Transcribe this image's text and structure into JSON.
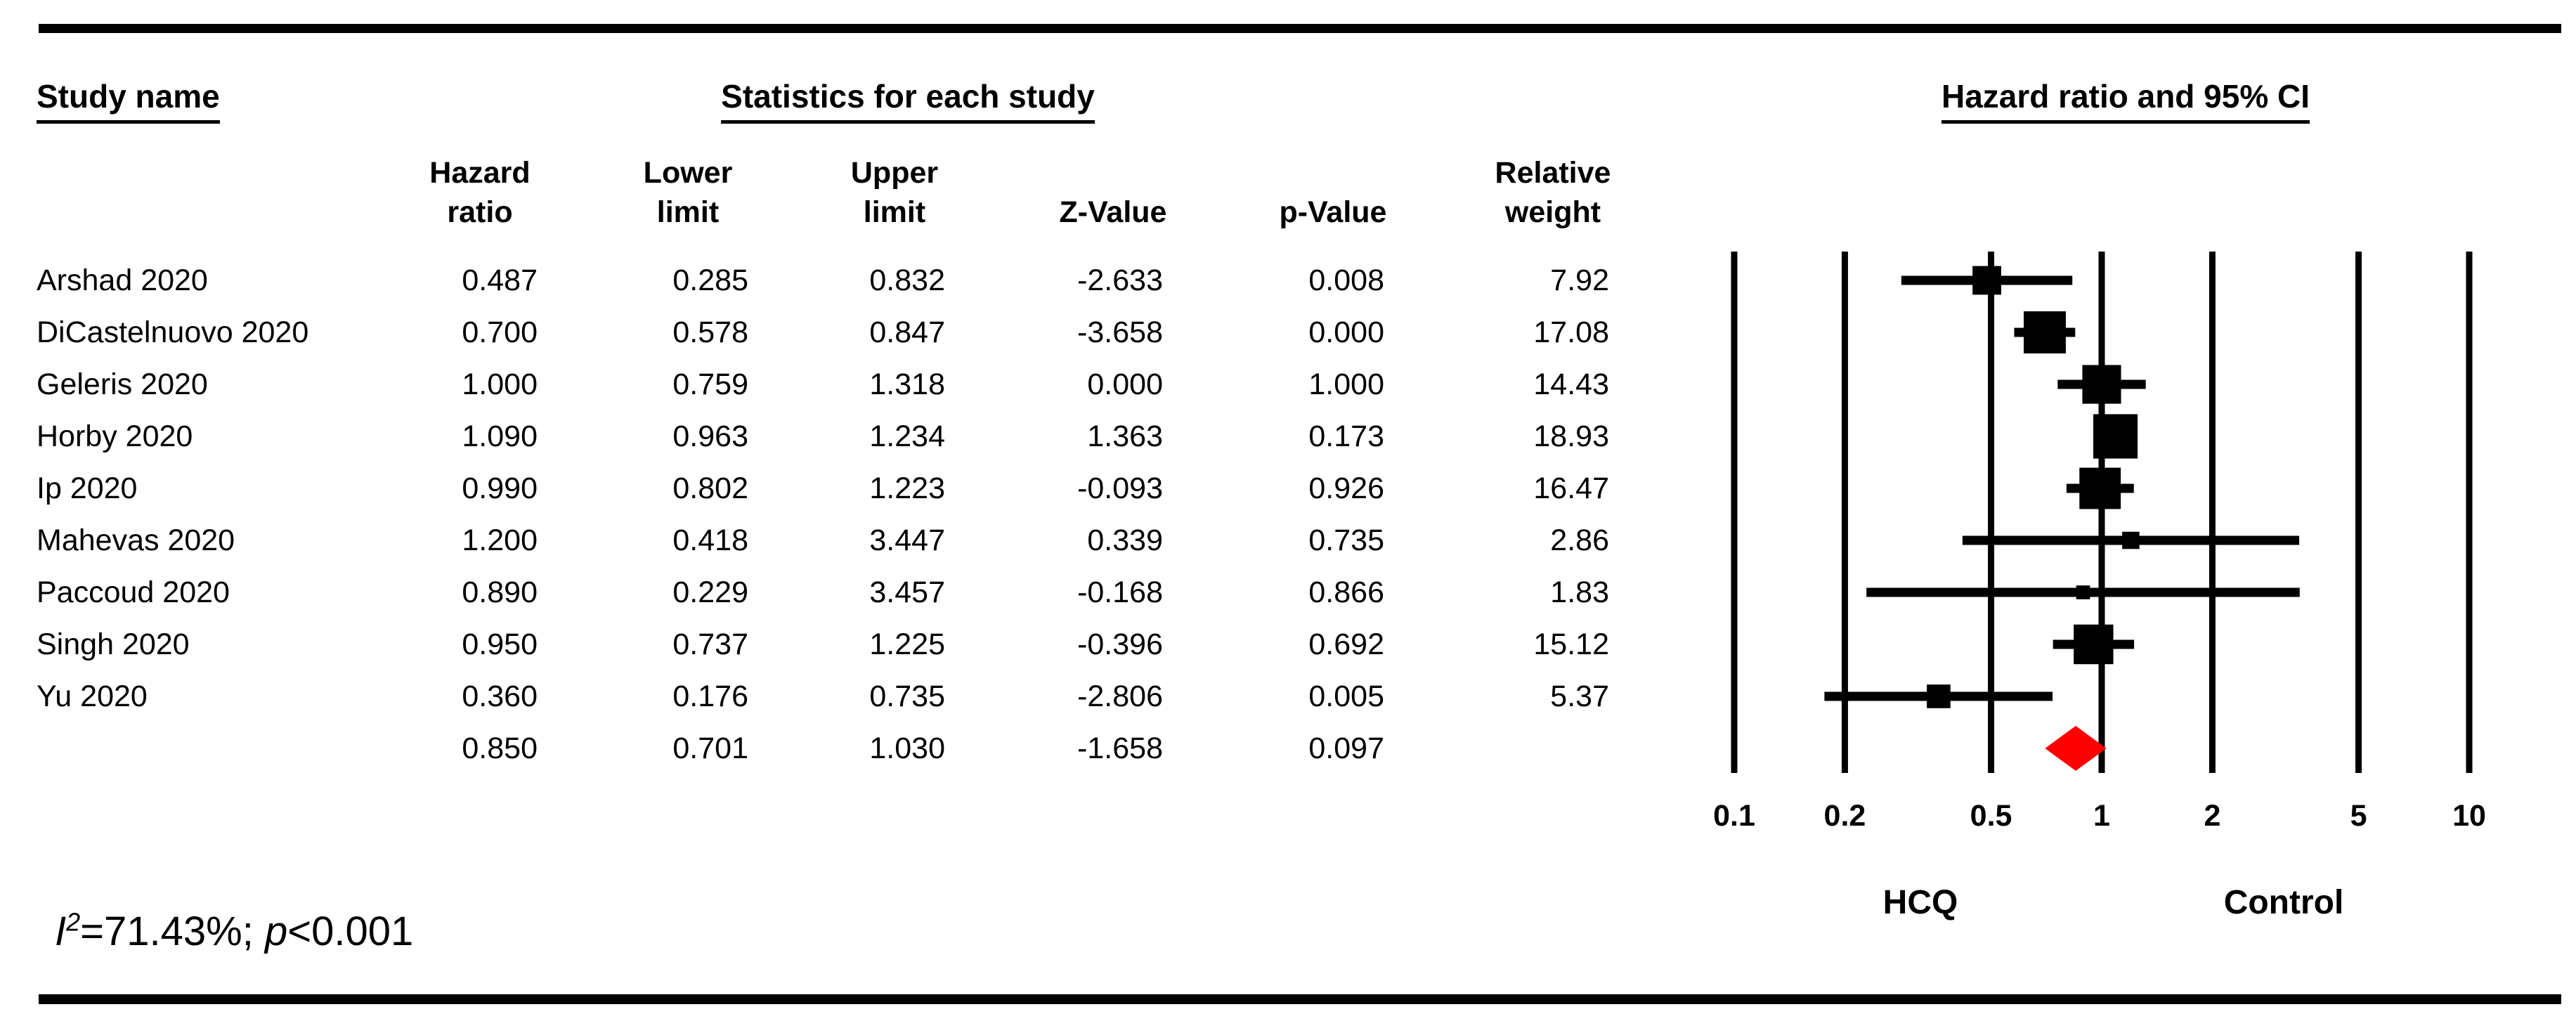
{
  "table": {
    "study_col_header": "Study name",
    "stats_header": "Statistics for each study",
    "plot_header": "Hazard ratio and 95% CI",
    "columns": [
      {
        "line1": "Hazard",
        "line2": "ratio"
      },
      {
        "line1": "Lower",
        "line2": "limit"
      },
      {
        "line1": "Upper",
        "line2": "limit"
      },
      {
        "line1": "",
        "line2": "Z-Value"
      },
      {
        "line1": "",
        "line2": "p-Value"
      },
      {
        "line1": "Relative",
        "line2": "weight"
      }
    ]
  },
  "chart_data": {
    "type": "forest",
    "x_scale": "log10",
    "axis_ticks": [
      0.1,
      0.2,
      0.5,
      1,
      2,
      5,
      10
    ],
    "xlim": [
      0.1,
      10
    ],
    "grid": "vertical-lines-at-ticks",
    "left_label": "HCQ",
    "right_label": "Control",
    "marker_color": "#000000",
    "summary_color": "#ff0000",
    "studies": [
      {
        "name": "Arshad 2020",
        "hazard_ratio": 0.487,
        "lower_limit": 0.285,
        "upper_limit": 0.832,
        "z_value": -2.633,
        "p_value": 0.008,
        "relative_weight": 7.92
      },
      {
        "name": "DiCastelnuovo 2020",
        "hazard_ratio": 0.7,
        "lower_limit": 0.578,
        "upper_limit": 0.847,
        "z_value": -3.658,
        "p_value": 0.0,
        "relative_weight": 17.08
      },
      {
        "name": "Geleris 2020",
        "hazard_ratio": 1.0,
        "lower_limit": 0.759,
        "upper_limit": 1.318,
        "z_value": 0.0,
        "p_value": 1.0,
        "relative_weight": 14.43
      },
      {
        "name": "Horby 2020",
        "hazard_ratio": 1.09,
        "lower_limit": 0.963,
        "upper_limit": 1.234,
        "z_value": 1.363,
        "p_value": 0.173,
        "relative_weight": 18.93
      },
      {
        "name": "Ip 2020",
        "hazard_ratio": 0.99,
        "lower_limit": 0.802,
        "upper_limit": 1.223,
        "z_value": -0.093,
        "p_value": 0.926,
        "relative_weight": 16.47
      },
      {
        "name": "Mahevas 2020",
        "hazard_ratio": 1.2,
        "lower_limit": 0.418,
        "upper_limit": 3.447,
        "z_value": 0.339,
        "p_value": 0.735,
        "relative_weight": 2.86
      },
      {
        "name": "Paccoud 2020",
        "hazard_ratio": 0.89,
        "lower_limit": 0.229,
        "upper_limit": 3.457,
        "z_value": -0.168,
        "p_value": 0.866,
        "relative_weight": 1.83
      },
      {
        "name": "Singh 2020",
        "hazard_ratio": 0.95,
        "lower_limit": 0.737,
        "upper_limit": 1.225,
        "z_value": -0.396,
        "p_value": 0.692,
        "relative_weight": 15.12
      },
      {
        "name": "Yu 2020",
        "hazard_ratio": 0.36,
        "lower_limit": 0.176,
        "upper_limit": 0.735,
        "z_value": -2.806,
        "p_value": 0.005,
        "relative_weight": 5.37
      }
    ],
    "summary": {
      "hazard_ratio": 0.85,
      "lower_limit": 0.701,
      "upper_limit": 1.03,
      "z_value": -1.658,
      "p_value": 0.097
    }
  },
  "footer": {
    "i_base": "I",
    "i_sup": "2",
    "eq_part": "=71.43%; ",
    "p_symbol": "p",
    "p_part": "<0.001"
  }
}
